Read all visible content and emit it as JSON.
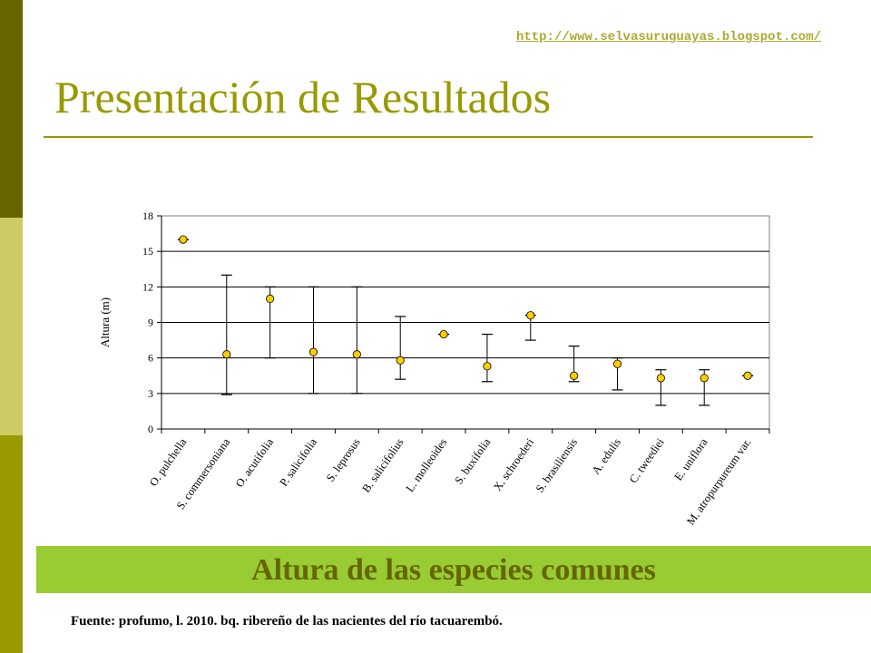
{
  "header": {
    "url": "http://www.selvasuruguayas.blogspot.com/",
    "title": "Presentación de Resultados"
  },
  "caption": "Altura de las especies comunes",
  "source": "Fuente: profumo, l. 2010. bq. ribereño de las nacientes del río tacuarembó.",
  "colors": {
    "sidebar_dark": "#666600",
    "sidebar_light": "#cccc66",
    "sidebar_mid": "#999900",
    "title": "#999900",
    "caption_band": "#99cc33",
    "caption_text": "#666600",
    "marker_fill": "#ffcc00"
  },
  "chart_data": {
    "type": "scatter",
    "ylabel": "Altura (m)",
    "xlabel": "",
    "ylim": [
      0,
      18
    ],
    "yticks": [
      0,
      3,
      6,
      9,
      12,
      15,
      18
    ],
    "grid": "horizontal",
    "error_bars": true,
    "categories": [
      "O. pulchella",
      "S. commersoniana",
      "O. acutifolia",
      "P. salicifolia",
      "S. leprosus",
      "B. salicifolius",
      "L. molleoides",
      "S. buxifolia",
      "X. schroederi",
      "S. brasiliensis",
      "A. edulis",
      "C. tweediei",
      "E. uniflora",
      "M. atropurpureum var."
    ],
    "series": [
      {
        "values": [
          16,
          6.3,
          11,
          6.5,
          6.3,
          5.8,
          8,
          5.3,
          9.6,
          4.5,
          5.5,
          4.3,
          4.3,
          4.5
        ],
        "min": [
          16,
          2.9,
          6,
          3,
          3,
          4.2,
          8,
          4,
          7.5,
          4,
          3.3,
          2,
          2,
          4.5
        ],
        "max": [
          16,
          13,
          12,
          12,
          12,
          9.5,
          8,
          8,
          9.6,
          7,
          6,
          5,
          5,
          4.5
        ]
      }
    ]
  }
}
